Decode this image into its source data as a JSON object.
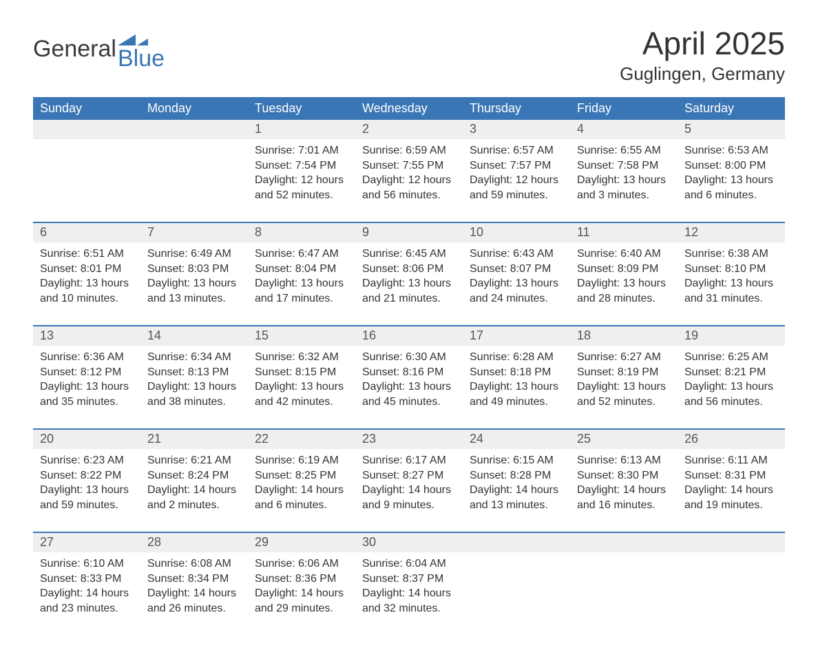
{
  "logo": {
    "text1": "General",
    "text2": "Blue",
    "icon_color": "#3a76b6",
    "text_color": "#3a3a3a"
  },
  "title": "April 2025",
  "location": "Guglingen, Germany",
  "colors": {
    "header_bg": "#3a76b6",
    "header_text": "#ffffff",
    "daynum_bg": "#efefef",
    "week_border": "#3a76b6",
    "body_text": "#333333"
  },
  "weekdays": [
    "Sunday",
    "Monday",
    "Tuesday",
    "Wednesday",
    "Thursday",
    "Friday",
    "Saturday"
  ],
  "weeks": [
    [
      {
        "n": "",
        "sun": "",
        "set": "",
        "day": ""
      },
      {
        "n": "",
        "sun": "",
        "set": "",
        "day": ""
      },
      {
        "n": "1",
        "sun": "Sunrise: 7:01 AM",
        "set": "Sunset: 7:54 PM",
        "day": "Daylight: 12 hours and 52 minutes."
      },
      {
        "n": "2",
        "sun": "Sunrise: 6:59 AM",
        "set": "Sunset: 7:55 PM",
        "day": "Daylight: 12 hours and 56 minutes."
      },
      {
        "n": "3",
        "sun": "Sunrise: 6:57 AM",
        "set": "Sunset: 7:57 PM",
        "day": "Daylight: 12 hours and 59 minutes."
      },
      {
        "n": "4",
        "sun": "Sunrise: 6:55 AM",
        "set": "Sunset: 7:58 PM",
        "day": "Daylight: 13 hours and 3 minutes."
      },
      {
        "n": "5",
        "sun": "Sunrise: 6:53 AM",
        "set": "Sunset: 8:00 PM",
        "day": "Daylight: 13 hours and 6 minutes."
      }
    ],
    [
      {
        "n": "6",
        "sun": "Sunrise: 6:51 AM",
        "set": "Sunset: 8:01 PM",
        "day": "Daylight: 13 hours and 10 minutes."
      },
      {
        "n": "7",
        "sun": "Sunrise: 6:49 AM",
        "set": "Sunset: 8:03 PM",
        "day": "Daylight: 13 hours and 13 minutes."
      },
      {
        "n": "8",
        "sun": "Sunrise: 6:47 AM",
        "set": "Sunset: 8:04 PM",
        "day": "Daylight: 13 hours and 17 minutes."
      },
      {
        "n": "9",
        "sun": "Sunrise: 6:45 AM",
        "set": "Sunset: 8:06 PM",
        "day": "Daylight: 13 hours and 21 minutes."
      },
      {
        "n": "10",
        "sun": "Sunrise: 6:43 AM",
        "set": "Sunset: 8:07 PM",
        "day": "Daylight: 13 hours and 24 minutes."
      },
      {
        "n": "11",
        "sun": "Sunrise: 6:40 AM",
        "set": "Sunset: 8:09 PM",
        "day": "Daylight: 13 hours and 28 minutes."
      },
      {
        "n": "12",
        "sun": "Sunrise: 6:38 AM",
        "set": "Sunset: 8:10 PM",
        "day": "Daylight: 13 hours and 31 minutes."
      }
    ],
    [
      {
        "n": "13",
        "sun": "Sunrise: 6:36 AM",
        "set": "Sunset: 8:12 PM",
        "day": "Daylight: 13 hours and 35 minutes."
      },
      {
        "n": "14",
        "sun": "Sunrise: 6:34 AM",
        "set": "Sunset: 8:13 PM",
        "day": "Daylight: 13 hours and 38 minutes."
      },
      {
        "n": "15",
        "sun": "Sunrise: 6:32 AM",
        "set": "Sunset: 8:15 PM",
        "day": "Daylight: 13 hours and 42 minutes."
      },
      {
        "n": "16",
        "sun": "Sunrise: 6:30 AM",
        "set": "Sunset: 8:16 PM",
        "day": "Daylight: 13 hours and 45 minutes."
      },
      {
        "n": "17",
        "sun": "Sunrise: 6:28 AM",
        "set": "Sunset: 8:18 PM",
        "day": "Daylight: 13 hours and 49 minutes."
      },
      {
        "n": "18",
        "sun": "Sunrise: 6:27 AM",
        "set": "Sunset: 8:19 PM",
        "day": "Daylight: 13 hours and 52 minutes."
      },
      {
        "n": "19",
        "sun": "Sunrise: 6:25 AM",
        "set": "Sunset: 8:21 PM",
        "day": "Daylight: 13 hours and 56 minutes."
      }
    ],
    [
      {
        "n": "20",
        "sun": "Sunrise: 6:23 AM",
        "set": "Sunset: 8:22 PM",
        "day": "Daylight: 13 hours and 59 minutes."
      },
      {
        "n": "21",
        "sun": "Sunrise: 6:21 AM",
        "set": "Sunset: 8:24 PM",
        "day": "Daylight: 14 hours and 2 minutes."
      },
      {
        "n": "22",
        "sun": "Sunrise: 6:19 AM",
        "set": "Sunset: 8:25 PM",
        "day": "Daylight: 14 hours and 6 minutes."
      },
      {
        "n": "23",
        "sun": "Sunrise: 6:17 AM",
        "set": "Sunset: 8:27 PM",
        "day": "Daylight: 14 hours and 9 minutes."
      },
      {
        "n": "24",
        "sun": "Sunrise: 6:15 AM",
        "set": "Sunset: 8:28 PM",
        "day": "Daylight: 14 hours and 13 minutes."
      },
      {
        "n": "25",
        "sun": "Sunrise: 6:13 AM",
        "set": "Sunset: 8:30 PM",
        "day": "Daylight: 14 hours and 16 minutes."
      },
      {
        "n": "26",
        "sun": "Sunrise: 6:11 AM",
        "set": "Sunset: 8:31 PM",
        "day": "Daylight: 14 hours and 19 minutes."
      }
    ],
    [
      {
        "n": "27",
        "sun": "Sunrise: 6:10 AM",
        "set": "Sunset: 8:33 PM",
        "day": "Daylight: 14 hours and 23 minutes."
      },
      {
        "n": "28",
        "sun": "Sunrise: 6:08 AM",
        "set": "Sunset: 8:34 PM",
        "day": "Daylight: 14 hours and 26 minutes."
      },
      {
        "n": "29",
        "sun": "Sunrise: 6:06 AM",
        "set": "Sunset: 8:36 PM",
        "day": "Daylight: 14 hours and 29 minutes."
      },
      {
        "n": "30",
        "sun": "Sunrise: 6:04 AM",
        "set": "Sunset: 8:37 PM",
        "day": "Daylight: 14 hours and 32 minutes."
      },
      {
        "n": "",
        "sun": "",
        "set": "",
        "day": ""
      },
      {
        "n": "",
        "sun": "",
        "set": "",
        "day": ""
      },
      {
        "n": "",
        "sun": "",
        "set": "",
        "day": ""
      }
    ]
  ]
}
